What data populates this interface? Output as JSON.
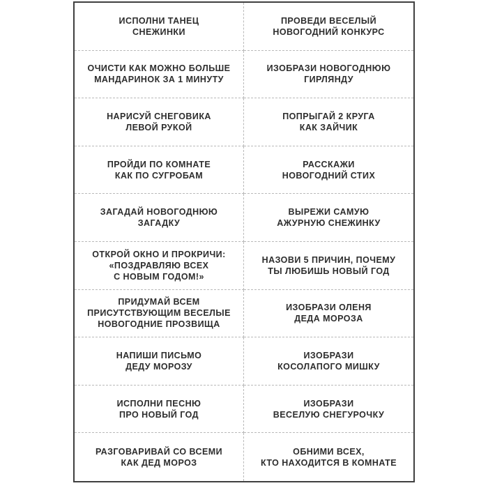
{
  "page": {
    "background_color": "#ffffff"
  },
  "sheet": {
    "description": "printable new-year task cards sheet, 2 columns x 10 rows",
    "border_color": "#3f3f3f",
    "divider_color": "#b9b9b9",
    "text_color": "#2d2d2d"
  },
  "cards": [
    {
      "text": "ИСПОЛНИ ТАНЕЦ\nСНЕЖИНКИ"
    },
    {
      "text": "ПРОВЕДИ ВЕСЕЛЫЙ\nНОВОГОДНИЙ КОНКУРС"
    },
    {
      "text": "ОЧИСТИ КАК МОЖНО БОЛЬШЕ\nМАНДАРИНОК ЗА 1 МИНУТУ"
    },
    {
      "text": "ИЗОБРАЗИ НОВОГОДНЮЮ\nГИРЛЯНДУ"
    },
    {
      "text": "НАРИСУЙ СНЕГОВИКА\nЛЕВОЙ РУКОЙ"
    },
    {
      "text": "ПОПРЫГАЙ 2 КРУГА\nКАК ЗАЙЧИК"
    },
    {
      "text": "ПРОЙДИ ПО КОМНАТЕ\nКАК ПО СУГРОБАМ"
    },
    {
      "text": "РАССКАЖИ\nНОВОГОДНИЙ СТИХ"
    },
    {
      "text": "ЗАГАДАЙ НОВОГОДНЮЮ\nЗАГАДКУ"
    },
    {
      "text": "ВЫРЕЖИ САМУЮ\nАЖУРНУЮ СНЕЖИНКУ"
    },
    {
      "text": "ОТКРОЙ ОКНО И ПРОКРИЧИ:\n«ПОЗДРАВЛЯЮ ВСЕХ\nС НОВЫМ ГОДОМ!»"
    },
    {
      "text": "НАЗОВИ 5 ПРИЧИН, ПОЧЕМУ\nТЫ ЛЮБИШЬ НОВЫЙ ГОД"
    },
    {
      "text": "ПРИДУМАЙ ВСЕМ\nПРИСУТСТВУЮЩИМ ВЕСЕЛЫЕ\nНОВОГОДНИЕ ПРОЗВИЩА"
    },
    {
      "text": "ИЗОБРАЗИ ОЛЕНЯ\nДЕДА МОРОЗА"
    },
    {
      "text": "НАПИШИ ПИСЬМО\nДЕДУ МОРОЗУ"
    },
    {
      "text": "ИЗОБРАЗИ\nКОСОЛАПОГО МИШКУ"
    },
    {
      "text": "ИСПОЛНИ ПЕСНЮ\nПРО НОВЫЙ ГОД"
    },
    {
      "text": "ИЗОБРАЗИ\nВЕСЕЛУЮ СНЕГУРОЧКУ"
    },
    {
      "text": "РАЗГОВАРИВАЙ СО ВСЕМИ\nКАК ДЕД МОРОЗ"
    },
    {
      "text": "ОБНИМИ ВСЕХ,\nКТО НАХОДИТСЯ В КОМНАТЕ"
    }
  ]
}
